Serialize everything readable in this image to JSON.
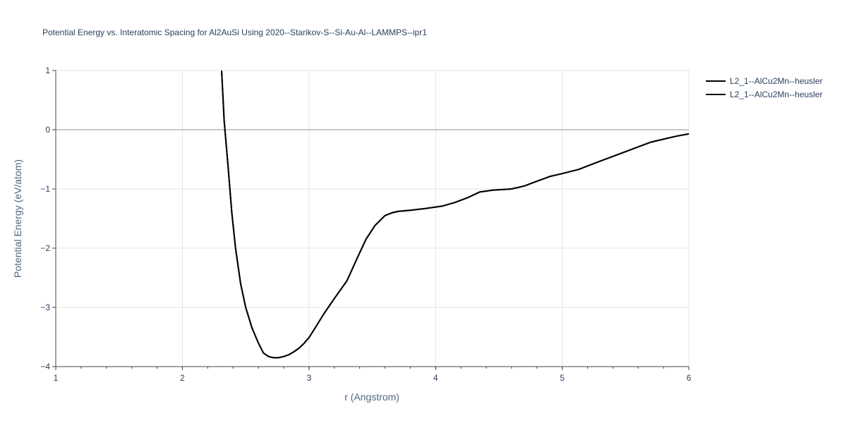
{
  "chart_data": {
    "type": "line",
    "title": "Potential Energy vs. Interatomic Spacing for Al2AuSi Using 2020--Starikov-S--Si-Au-Al--LAMMPS--ipr1",
    "xlabel": "r (Angstrom)",
    "ylabel": "Potential Energy (eV/atom)",
    "xlim": [
      1,
      6
    ],
    "ylim": [
      -4,
      1
    ],
    "x_ticks": [
      1,
      2,
      3,
      4,
      5,
      6
    ],
    "y_ticks": [
      -4,
      -3,
      -2,
      -1,
      0,
      1
    ],
    "x_tick_labels": [
      "1",
      "2",
      "3",
      "4",
      "5",
      "6"
    ],
    "y_tick_labels": [
      "−4",
      "−3",
      "−2",
      "−1",
      "0",
      "1"
    ],
    "grid": true,
    "legend_position": "top-right",
    "line_color": "#000000",
    "series": [
      {
        "name": "L2_1--AlCu2Mn--heusler",
        "x": [
          2.31,
          2.33,
          2.36,
          2.39,
          2.42,
          2.46,
          2.5,
          2.55,
          2.6,
          2.64,
          2.68,
          2.72,
          2.76,
          2.8,
          2.84,
          2.88,
          2.92,
          2.96,
          3.0,
          3.05,
          3.12,
          3.2,
          3.3,
          3.38,
          3.45,
          3.52,
          3.6,
          3.66,
          3.7,
          3.8,
          3.92,
          4.05,
          4.15,
          4.25,
          4.35,
          4.45,
          4.6,
          4.7,
          4.8,
          4.9,
          5.0,
          5.13,
          5.25,
          5.4,
          5.55,
          5.7,
          5.8,
          5.9,
          6.0
        ],
        "y": [
          1.0,
          0.15,
          -0.6,
          -1.4,
          -2.0,
          -2.6,
          -3.0,
          -3.35,
          -3.6,
          -3.77,
          -3.83,
          -3.85,
          -3.85,
          -3.83,
          -3.8,
          -3.75,
          -3.69,
          -3.61,
          -3.51,
          -3.34,
          -3.1,
          -2.85,
          -2.55,
          -2.17,
          -1.85,
          -1.62,
          -1.45,
          -1.4,
          -1.38,
          -1.36,
          -1.33,
          -1.29,
          -1.23,
          -1.15,
          -1.05,
          -1.02,
          -1.0,
          -0.95,
          -0.87,
          -0.79,
          -0.74,
          -0.67,
          -0.57,
          -0.45,
          -0.33,
          -0.21,
          -0.16,
          -0.11,
          -0.07
        ]
      },
      {
        "name": "L2_1--AlCu2Mn--heusler",
        "x": [
          2.31,
          2.33,
          2.36,
          2.39,
          2.42,
          2.46,
          2.5,
          2.55,
          2.6,
          2.64,
          2.68,
          2.72,
          2.76,
          2.8,
          2.84,
          2.88,
          2.92,
          2.96,
          3.0,
          3.05,
          3.12,
          3.2,
          3.3,
          3.38,
          3.45,
          3.52,
          3.6,
          3.66,
          3.7,
          3.8,
          3.92,
          4.05,
          4.15,
          4.25,
          4.35,
          4.45,
          4.6,
          4.7,
          4.8,
          4.9,
          5.0,
          5.13,
          5.25,
          5.4,
          5.55,
          5.7,
          5.8,
          5.9,
          6.0
        ],
        "y": [
          1.0,
          0.15,
          -0.6,
          -1.4,
          -2.0,
          -2.6,
          -3.0,
          -3.35,
          -3.6,
          -3.77,
          -3.83,
          -3.85,
          -3.85,
          -3.83,
          -3.8,
          -3.75,
          -3.69,
          -3.61,
          -3.51,
          -3.34,
          -3.1,
          -2.85,
          -2.55,
          -2.17,
          -1.85,
          -1.62,
          -1.45,
          -1.4,
          -1.38,
          -1.36,
          -1.33,
          -1.29,
          -1.23,
          -1.15,
          -1.05,
          -1.02,
          -1.0,
          -0.95,
          -0.87,
          -0.79,
          -0.74,
          -0.67,
          -0.57,
          -0.45,
          -0.33,
          -0.21,
          -0.16,
          -0.11,
          -0.07
        ]
      }
    ]
  }
}
